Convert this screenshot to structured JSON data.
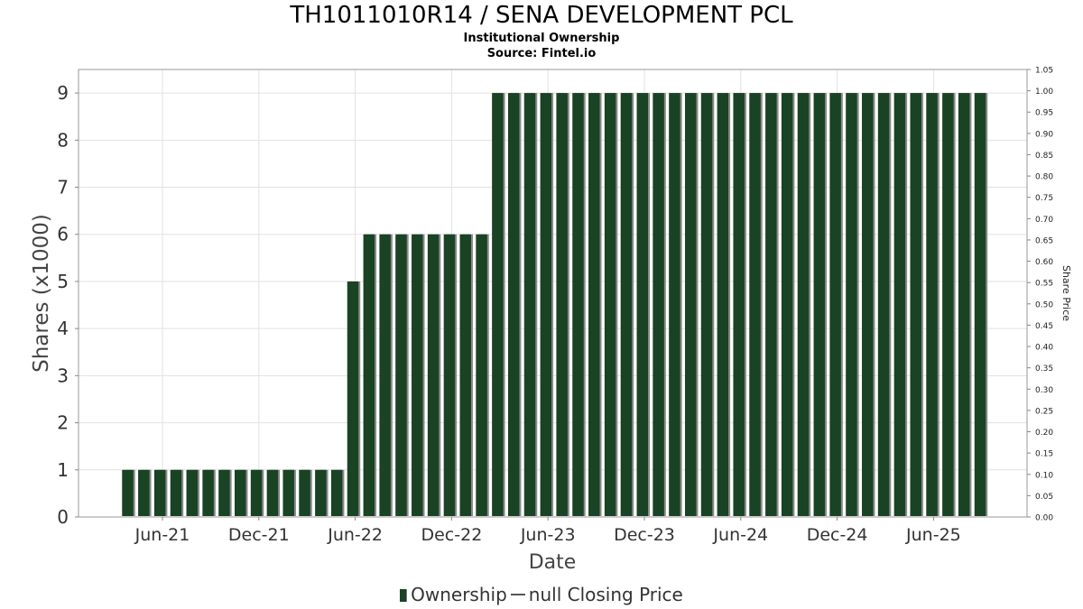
{
  "header": {
    "title": "TH1011010R14 / SENA DEVELOPMENT PCL",
    "subtitle": "Institutional Ownership",
    "source": "Source: Fintel.io"
  },
  "legend": {
    "ownership_label": "Ownership",
    "price_label": "null Closing Price"
  },
  "colors": {
    "bar": "#1a4224",
    "bar_shadow": "#8a8a8a",
    "grid": "#e2e2e2"
  },
  "chart_data": {
    "type": "bar",
    "title": "TH1011010R14 / SENA DEVELOPMENT PCL",
    "xlabel": "Date",
    "ylabel": "Shares (x1000)",
    "y2label": "Share Price",
    "ylim": [
      0,
      9.5
    ],
    "y2lim": [
      0,
      1.05
    ],
    "yticks": [
      "0",
      "1",
      "2",
      "3",
      "4",
      "5",
      "6",
      "7",
      "8",
      "9"
    ],
    "y2ticks": [
      "0.00",
      "0.05",
      "0.10",
      "0.15",
      "0.20",
      "0.25",
      "0.30",
      "0.35",
      "0.40",
      "0.45",
      "0.50",
      "0.55",
      "0.60",
      "0.65",
      "0.70",
      "0.75",
      "0.80",
      "0.85",
      "0.90",
      "0.95",
      "1.00",
      "1.05"
    ],
    "xticks": [
      "Jun-21",
      "Dec-21",
      "Jun-22",
      "Dec-22",
      "Jun-23",
      "Dec-23",
      "Jun-24",
      "Dec-24",
      "Jun-25"
    ],
    "grid": true,
    "legend_position": "bottom",
    "series": [
      {
        "name": "Ownership",
        "values": [
          1,
          1,
          1,
          1,
          1,
          1,
          1,
          1,
          1,
          1,
          1,
          1,
          1,
          1,
          5,
          6,
          6,
          6,
          6,
          6,
          6,
          6,
          6,
          9,
          9,
          9,
          9,
          9,
          9,
          9,
          9,
          9,
          9,
          9,
          9,
          9,
          9,
          9,
          9,
          9,
          9,
          9,
          9,
          9,
          9,
          9,
          9,
          9,
          9,
          9,
          9,
          9,
          9,
          9
        ]
      }
    ]
  }
}
